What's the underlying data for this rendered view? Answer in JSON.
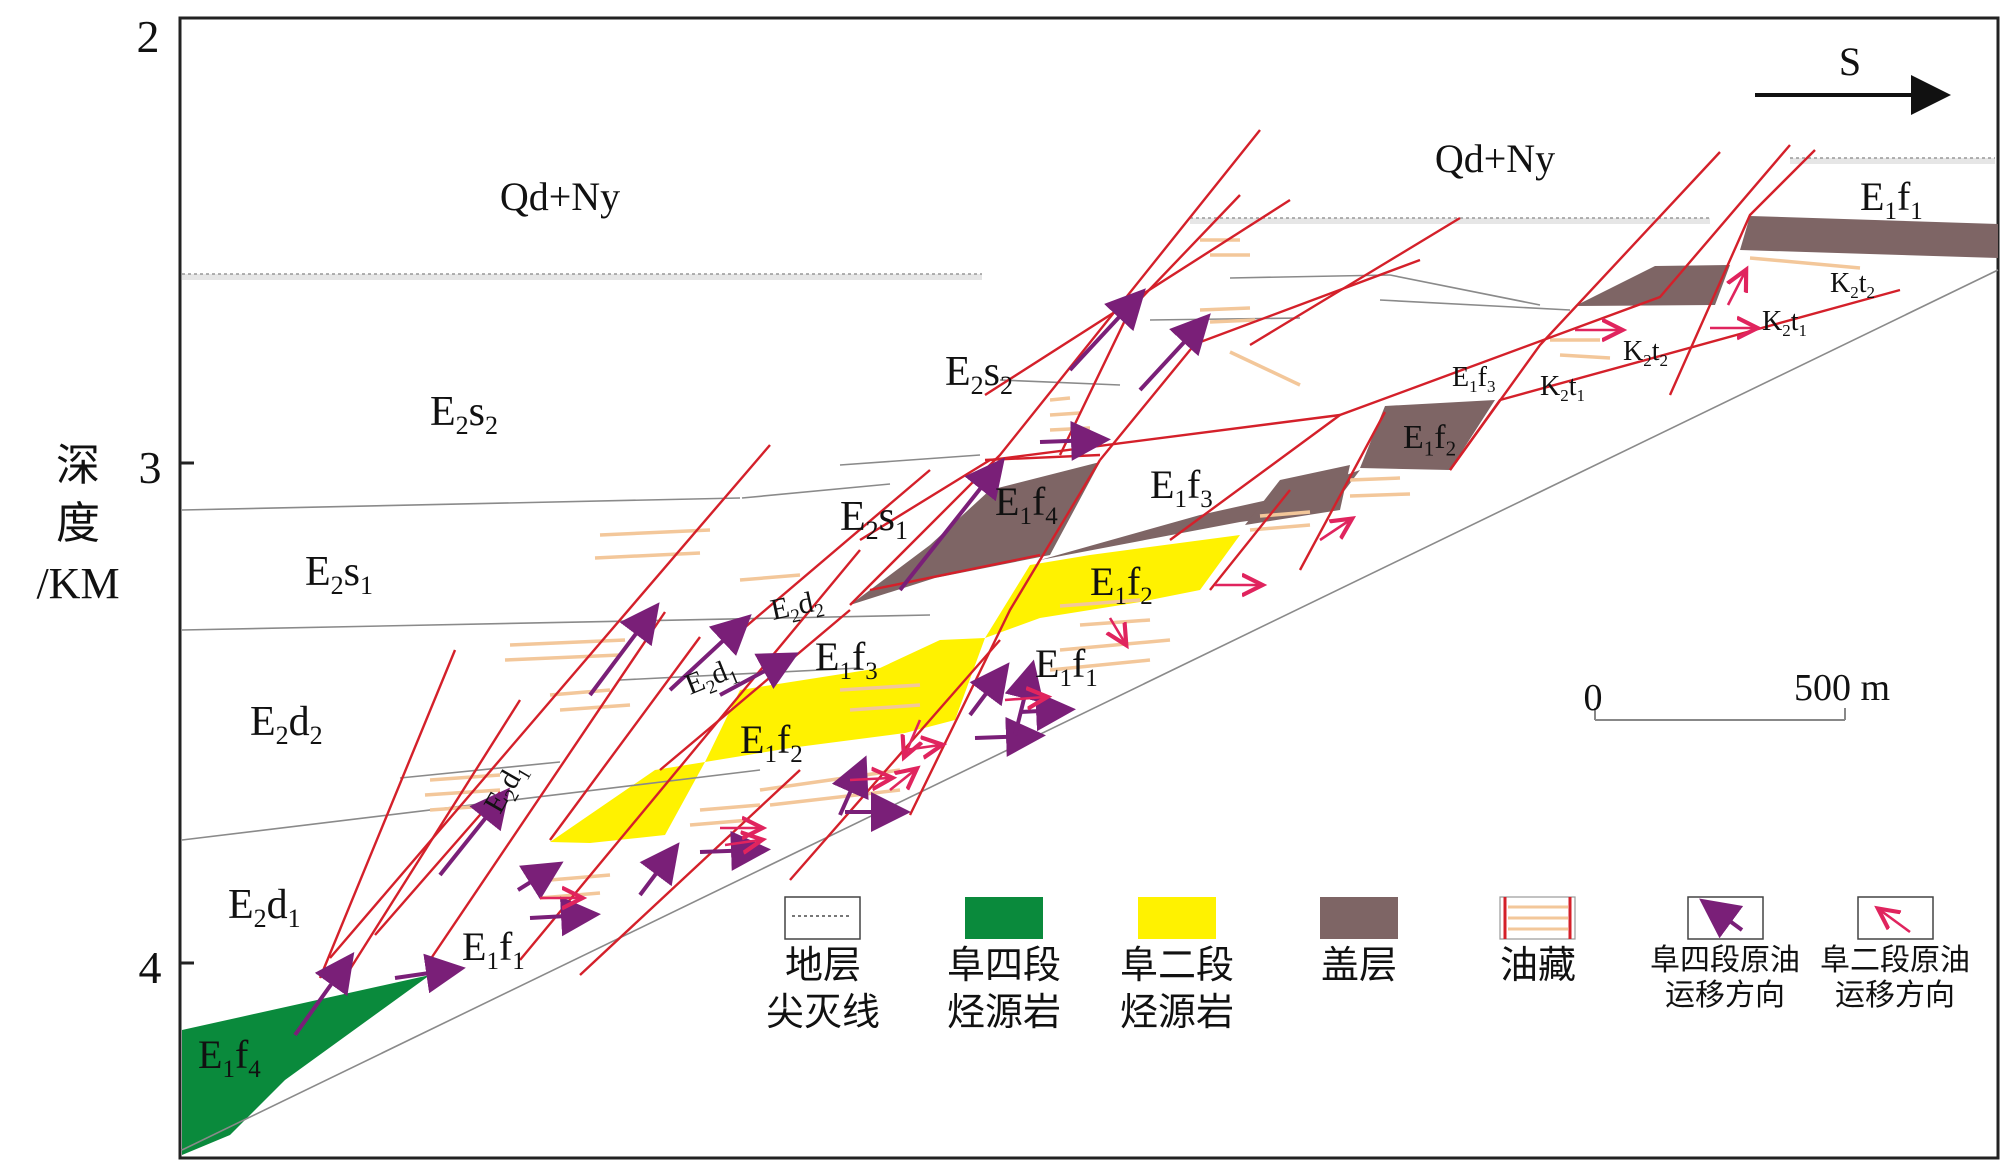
{
  "colors": {
    "fault": "#d4202a",
    "strata_line": "#8a8a8a",
    "fu4_source": "#0a8a3c",
    "fu2_source": "#fff200",
    "cap": "#7e6565",
    "reservoir": "#f3c79a",
    "arrow_fu4": "#7a1f78",
    "arrow_fu2": "#e0245e"
  },
  "axis": {
    "title_line1": "深",
    "title_line2": "度",
    "title_line3": "/KM",
    "tick_2": "2",
    "tick_3": "3",
    "tick_4": "4"
  },
  "direction": {
    "label": "S"
  },
  "scale_bar": {
    "start": "0",
    "end": "500 m"
  },
  "strata": {
    "qd_left": "Qd+Ny",
    "qd_right": "Qd+Ny",
    "e2s2_left": {
      "base": "E",
      "sub1": "2",
      "mid": "s",
      "sub2": "2"
    },
    "e2s2_mid": {
      "base": "E",
      "sub1": "2",
      "mid": "s",
      "sub2": "2"
    },
    "e2s1_left": {
      "base": "E",
      "sub1": "2",
      "mid": "s",
      "sub2": "1"
    },
    "e2s1_mid": {
      "base": "E",
      "sub1": "2",
      "mid": "s",
      "sub2": "1"
    },
    "e2d2_left": {
      "base": "E",
      "sub1": "2",
      "mid": "d",
      "sub2": "2"
    },
    "e2d1_left": {
      "base": "E",
      "sub1": "2",
      "mid": "d",
      "sub2": "1"
    },
    "e2d2_small": {
      "base": "E",
      "sub1": "2",
      "mid": "d",
      "sub2": "2"
    },
    "e2d1_small_a": {
      "base": "E",
      "sub1": "2",
      "mid": "d",
      "sub2": "1"
    },
    "e2d1_small_b": {
      "base": "E",
      "sub1": "2",
      "mid": "d",
      "sub2": "1"
    },
    "e1f4_green": {
      "base": "E",
      "sub1": "1",
      "mid": "f",
      "sub2": "4"
    },
    "e1f4_mid": {
      "base": "E",
      "sub1": "1",
      "mid": "f",
      "sub2": "4"
    },
    "e1f1_low": {
      "base": "E",
      "sub1": "1",
      "mid": "f",
      "sub2": "1"
    },
    "e1f1_mid": {
      "base": "E",
      "sub1": "1",
      "mid": "f",
      "sub2": "1"
    },
    "e1f1_right": {
      "base": "E",
      "sub1": "1",
      "mid": "f",
      "sub2": "1"
    },
    "e1f2_low": {
      "base": "E",
      "sub1": "1",
      "mid": "f",
      "sub2": "2"
    },
    "e1f2_mid": {
      "base": "E",
      "sub1": "1",
      "mid": "f",
      "sub2": "2"
    },
    "e1f2_right": {
      "base": "E",
      "sub1": "1",
      "mid": "f",
      "sub2": "2"
    },
    "e1f3_low": {
      "base": "E",
      "sub1": "1",
      "mid": "f",
      "sub2": "3"
    },
    "e1f3_mid": {
      "base": "E",
      "sub1": "1",
      "mid": "f",
      "sub2": "3"
    },
    "e1f3_right": {
      "base": "E",
      "sub1": "1",
      "mid": "f",
      "sub2": "3"
    },
    "k2t2_a": {
      "base": "K",
      "sub1": "2",
      "mid": "t",
      "sub2": "2"
    },
    "k2t2_b": {
      "base": "K",
      "sub1": "2",
      "mid": "t",
      "sub2": "2"
    },
    "k2t1_a": {
      "base": "K",
      "sub1": "2",
      "mid": "t",
      "sub2": "1"
    },
    "k2t1_b": {
      "base": "K",
      "sub1": "2",
      "mid": "t",
      "sub2": "1"
    }
  },
  "legend": [
    {
      "id": "pinchout",
      "line1": "地层",
      "line2": "尖灭线"
    },
    {
      "id": "fu4_source",
      "line1": "阜四段",
      "line2": "烃源岩"
    },
    {
      "id": "fu2_source",
      "line1": "阜二段",
      "line2": "烃源岩"
    },
    {
      "id": "cap",
      "line1": "盖层",
      "line2": ""
    },
    {
      "id": "reservoir",
      "line1": "油藏",
      "line2": ""
    },
    {
      "id": "fu4_migration",
      "line1": "阜四段原油",
      "line2": "运移方向"
    },
    {
      "id": "fu2_migration",
      "line1": "阜二段原油",
      "line2": "运移方向"
    }
  ]
}
